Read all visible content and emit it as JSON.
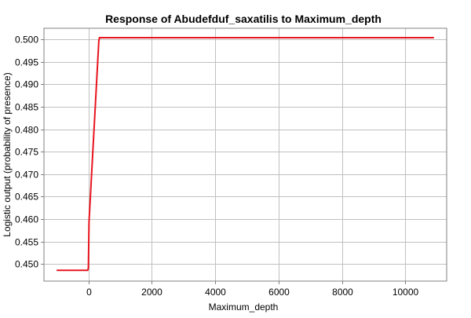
{
  "chart_data": {
    "type": "line",
    "title": "Response of Abudefduf_saxatilis to Maximum_depth",
    "xlabel": "Maximum_depth",
    "ylabel": "Logistic output (probability of presence)",
    "xlim": [
      -1400,
      11300
    ],
    "ylim": [
      0.4462,
      0.5025
    ],
    "x_ticks": [
      0,
      2000,
      4000,
      6000,
      8000,
      10000
    ],
    "x_tick_labels": [
      "0",
      "2000",
      "4000",
      "6000",
      "8000",
      "10000"
    ],
    "y_ticks": [
      0.45,
      0.455,
      0.46,
      0.465,
      0.47,
      0.475,
      0.48,
      0.485,
      0.49,
      0.495,
      0.5
    ],
    "y_tick_labels": [
      "0.450",
      "0.455",
      "0.460",
      "0.465",
      "0.470",
      "0.475",
      "0.480",
      "0.485",
      "0.490",
      "0.495",
      "0.500"
    ],
    "grid": true,
    "series": [
      {
        "color": "#e8141e",
        "x": [
          -1000,
          -20,
          0,
          20,
          330,
          350,
          10900
        ],
        "y": [
          0.4486,
          0.4486,
          0.4491,
          0.4594,
          0.4997,
          0.5004,
          0.5004
        ]
      }
    ]
  }
}
